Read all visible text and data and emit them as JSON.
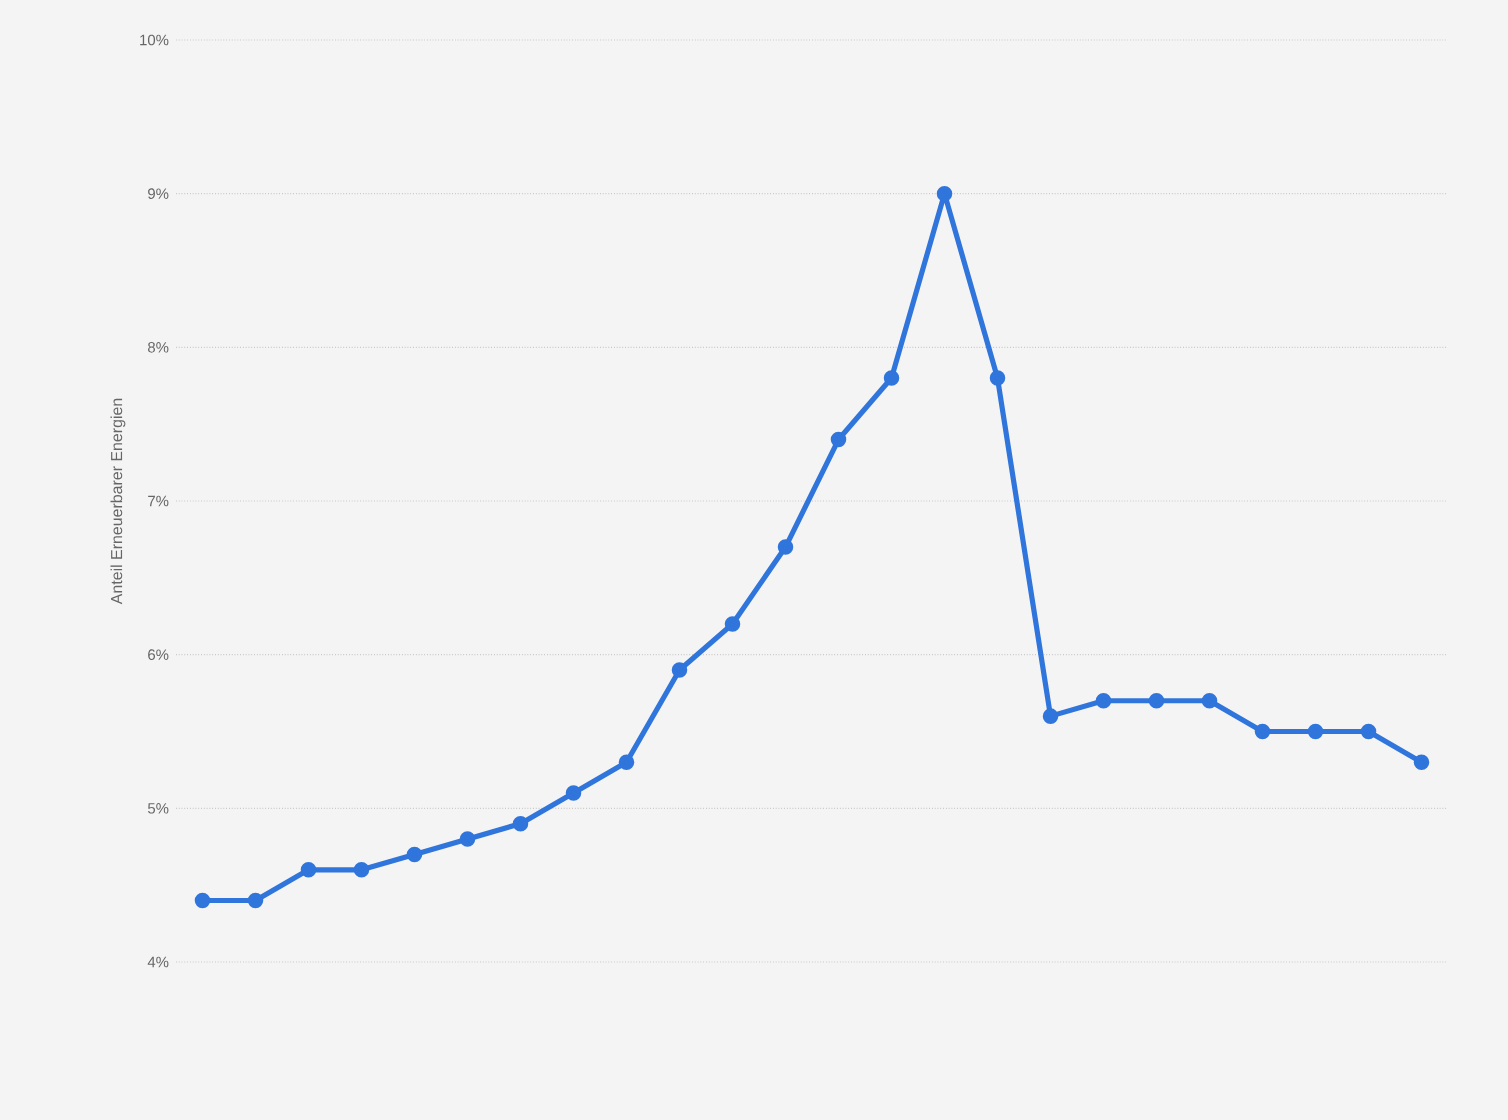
{
  "chart_data": {
    "type": "line",
    "ylabel": "Anteil Erneuerbarer Energien",
    "categories": [
      null,
      null,
      null,
      null,
      null,
      null,
      null,
      null,
      null,
      null,
      null,
      null,
      null,
      null,
      null,
      null,
      null,
      null,
      null,
      null,
      null,
      null,
      null,
      null
    ],
    "series": [
      {
        "color": "#2f75db",
        "values": [
          4.4,
          4.4,
          4.6,
          4.6,
          4.7,
          4.8,
          4.9,
          5.1,
          5.3,
          5.9,
          6.2,
          6.7,
          7.4,
          7.8,
          9.0,
          7.8,
          5.6,
          5.7,
          5.7,
          5.7,
          5.5,
          5.5,
          5.5,
          5.3
        ]
      }
    ],
    "ylim": [
      4,
      10
    ],
    "yticks": [
      {
        "value": 4,
        "label": "4%"
      },
      {
        "value": 5,
        "label": "5%"
      },
      {
        "value": 6,
        "label": "6%"
      },
      {
        "value": 7,
        "label": "7%"
      },
      {
        "value": 8,
        "label": "8%"
      },
      {
        "value": 9,
        "label": "9%"
      },
      {
        "value": 10,
        "label": "10%"
      }
    ],
    "grid": "y",
    "marker": "circle",
    "line_style": "solid"
  }
}
